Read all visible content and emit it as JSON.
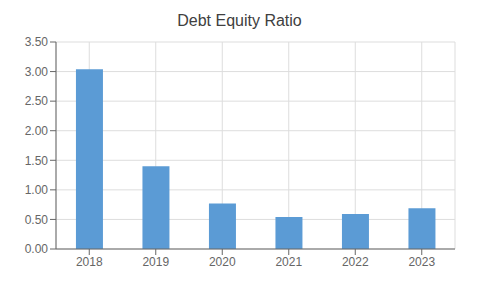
{
  "chart_data": {
    "type": "bar",
    "title": "Debt Equity Ratio",
    "categories": [
      "2018",
      "2019",
      "2020",
      "2021",
      "2022",
      "2023"
    ],
    "values": [
      3.04,
      1.4,
      0.77,
      0.54,
      0.59,
      0.69
    ],
    "color": "#5b9bd5",
    "ylim": [
      0,
      3.5
    ],
    "yticks": [
      {
        "value": 0.0,
        "label": "0.00"
      },
      {
        "value": 0.5,
        "label": "0.50"
      },
      {
        "value": 1.0,
        "label": "1.00"
      },
      {
        "value": 1.5,
        "label": "1.50"
      },
      {
        "value": 2.0,
        "label": "2.00"
      },
      {
        "value": 2.5,
        "label": "2.50"
      },
      {
        "value": 3.0,
        "label": "3.00"
      },
      {
        "value": 3.5,
        "label": "3.50"
      }
    ],
    "grid": true
  }
}
